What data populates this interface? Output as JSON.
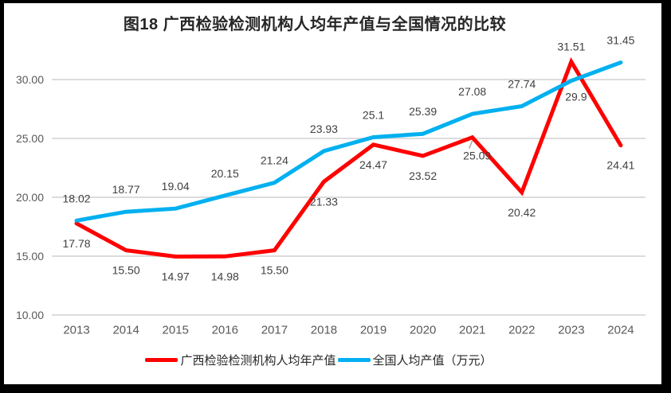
{
  "chart_data": {
    "type": "line",
    "title": "图18 广西检验检测机构人均年产值与全国情况的比较",
    "categories": [
      "2013",
      "2014",
      "2015",
      "2016",
      "2017",
      "2018",
      "2019",
      "2020",
      "2021",
      "2022",
      "2023",
      "2024"
    ],
    "series": [
      {
        "name": "广西检验检测机构人均年产值",
        "color": "#FF0000",
        "values": [
          17.78,
          15.5,
          14.97,
          14.98,
          15.5,
          21.33,
          24.47,
          23.52,
          25.09,
          20.42,
          31.51,
          24.41
        ],
        "labels": [
          "17.78",
          "15.50",
          "14.97",
          "14.98",
          "15.50",
          "21.33",
          "24.47",
          "23.52",
          "25.09",
          "20.42",
          "31.51",
          "24.41"
        ],
        "label_pos": [
          "below",
          "below",
          "below",
          "below",
          "below",
          "below",
          "below",
          "below",
          {
            "dx": 6,
            "dy": 23,
            "leader": true
          },
          "below",
          {
            "dy": -19
          },
          "below"
        ]
      },
      {
        "name": "全国人均产值（万元）",
        "color": "#00B0F0",
        "values": [
          18.02,
          18.77,
          19.04,
          20.15,
          21.24,
          23.93,
          25.1,
          25.39,
          27.08,
          27.74,
          29.9,
          31.45
        ],
        "labels": [
          "18.02",
          "18.77",
          "19.04",
          "20.15",
          "21.24",
          "23.93",
          "25.1",
          "25.39",
          "27.08",
          "27.74",
          "29.9",
          "31.45"
        ],
        "label_pos": [
          "above",
          "above",
          "above",
          "above",
          "above",
          "above",
          "above",
          "above",
          "above",
          "above",
          {
            "dx": 6,
            "dy": 20
          },
          "above"
        ]
      }
    ],
    "y_axis": {
      "min": 10,
      "max": 30,
      "tick_step": 5,
      "ticks": [
        "10.00",
        "15.00",
        "20.00",
        "25.00",
        "30.00"
      ]
    },
    "grid": true,
    "legend_position": "bottom",
    "colors": {
      "grid": "#DCDCDC",
      "tick_text": "#595959",
      "data_label_text": "#404040",
      "title_text": "#262626",
      "frame_border": "#000000",
      "leader_line": "#A6A6A6"
    }
  }
}
